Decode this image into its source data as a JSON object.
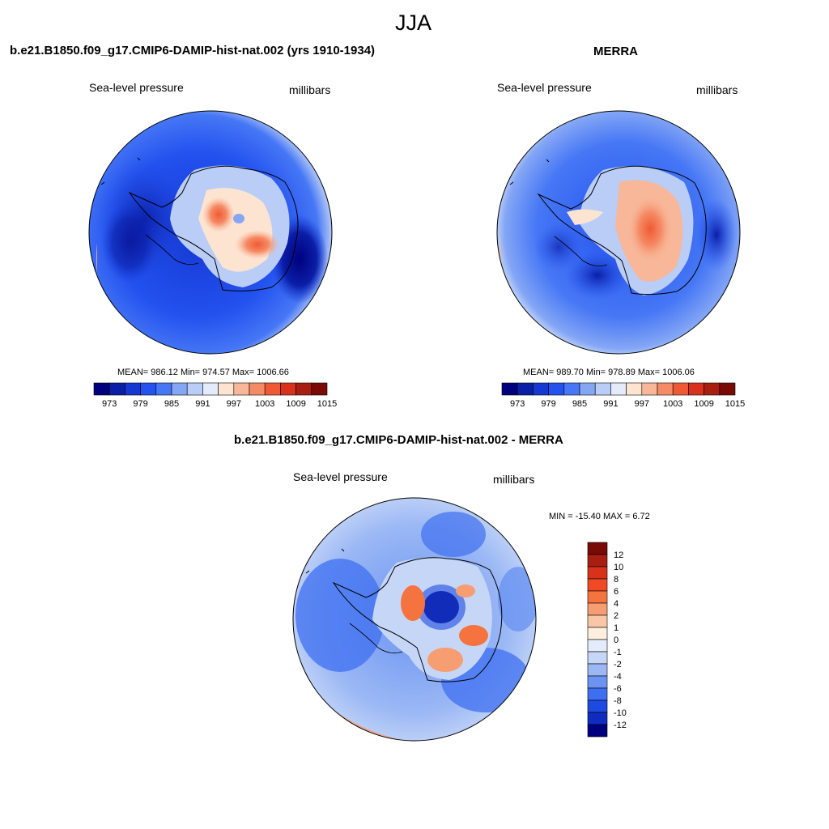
{
  "figure": {
    "season_title": "JJA"
  },
  "panels": [
    {
      "title": "b.e21.B1850.f09_g17.CMIP6-DAMIP-hist-nat.002 (yrs 1910-1934)",
      "left_label": "Sea-level pressure",
      "right_label": "millibars",
      "stats": "MEAN= 986.12  Min= 974.57  Max= 1006.66",
      "colorbar_ticks": [
        "973",
        "979",
        "985",
        "991",
        "997",
        "1003",
        "1009",
        "1015"
      ]
    },
    {
      "title": "MERRA",
      "left_label": "Sea-level pressure",
      "right_label": "millibars",
      "stats": "MEAN= 989.70  Min= 978.89  Max= 1006.06",
      "colorbar_ticks": [
        "973",
        "979",
        "985",
        "991",
        "997",
        "1003",
        "1009",
        "1015"
      ]
    },
    {
      "title": "b.e21.B1850.f09_g17.CMIP6-DAMIP-hist-nat.002 - MERRA",
      "left_label": "Sea-level pressure",
      "right_label": "millibars",
      "stats": "MIN = -15.40 MAX =   6.72",
      "colorbar_ticks": [
        "12",
        "10",
        "8",
        "6",
        "4",
        "2",
        "1",
        "0",
        "-1",
        "-2",
        "-4",
        "-6",
        "-8",
        "-10",
        "-12"
      ]
    }
  ],
  "colors": {
    "abs_scale": [
      "#00007f",
      "#0a1ea6",
      "#1537d2",
      "#2352ef",
      "#4677f5",
      "#84a6f5",
      "#b9cdf7",
      "#e4ecfb",
      "#fde4d1",
      "#f8b799",
      "#f58b66",
      "#ef5a35",
      "#d8321d",
      "#a81e10",
      "#7a0a05"
    ],
    "diff_scale": [
      "#7a0a05",
      "#a81e10",
      "#d8321d",
      "#ef4a25",
      "#f5733f",
      "#f69d72",
      "#f9c7a6",
      "#fdeedf",
      "#e4ecfb",
      "#c6d6f7",
      "#9bb8f5",
      "#6a93f2",
      "#3e6ff0",
      "#1d4ae0",
      "#0f2bc0",
      "#00007f"
    ]
  }
}
